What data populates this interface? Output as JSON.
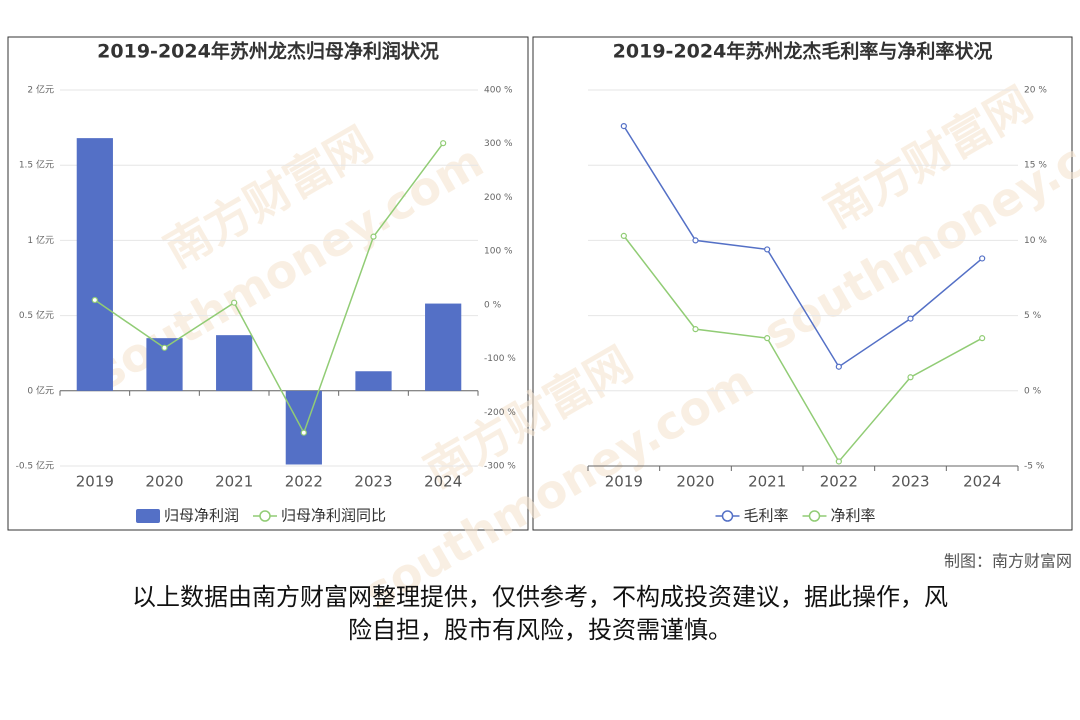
{
  "chart_data": [
    {
      "type": "bar",
      "title": "2019-2024年苏州龙杰归母净利润状况",
      "categories": [
        "2019",
        "2020",
        "2021",
        "2022",
        "2023",
        "2024"
      ],
      "series": [
        {
          "name": "归母净利润",
          "type": "bar",
          "color": "#5470c6",
          "values": [
            1.68,
            0.35,
            0.37,
            -0.49,
            0.13,
            0.58
          ]
        },
        {
          "name": "归母净利润同比",
          "type": "line",
          "axis": "y2",
          "color": "#91cc75",
          "values": [
            9,
            -80,
            4,
            -238,
            127,
            301
          ]
        }
      ],
      "ylim": [
        -0.5,
        2
      ],
      "yticks": [
        {
          "value": -0.5,
          "label": "-0.5 亿元"
        },
        {
          "value": 0,
          "label": "0 亿元"
        },
        {
          "value": 0.5,
          "label": "0.5 亿元"
        },
        {
          "value": 1,
          "label": "1 亿元"
        },
        {
          "value": 1.5,
          "label": "1.5 亿元"
        },
        {
          "value": 2,
          "label": "2 亿元"
        }
      ],
      "y2lim": [
        -300,
        400
      ],
      "y2ticks": [
        {
          "value": -300,
          "label": "-300 %"
        },
        {
          "value": -200,
          "label": "-200 %"
        },
        {
          "value": -100,
          "label": "-100 %"
        },
        {
          "value": 0,
          "label": "0 %"
        },
        {
          "value": 100,
          "label": "100 %"
        },
        {
          "value": 200,
          "label": "200 %"
        },
        {
          "value": 300,
          "label": "300 %"
        },
        {
          "value": 400,
          "label": "400 %"
        }
      ],
      "grid": true
    },
    {
      "type": "line",
      "title": "2019-2024年苏州龙杰毛利率与净利率状况",
      "categories": [
        "2019",
        "2020",
        "2021",
        "2022",
        "2023",
        "2024"
      ],
      "series": [
        {
          "name": "毛利率",
          "type": "line",
          "axis": "y2",
          "color": "#5470c6",
          "values": [
            17.6,
            10.0,
            9.4,
            1.6,
            4.8,
            8.8
          ]
        },
        {
          "name": "净利率",
          "type": "line",
          "axis": "y2",
          "color": "#91cc75",
          "values": [
            10.3,
            4.1,
            3.5,
            -4.7,
            0.9,
            3.5
          ]
        }
      ],
      "y2lim": [
        -5,
        20
      ],
      "y2ticks": [
        {
          "value": -5,
          "label": "-5 %"
        },
        {
          "value": 0,
          "label": "0 %"
        },
        {
          "value": 5,
          "label": "5 %"
        },
        {
          "value": 10,
          "label": "10 %"
        },
        {
          "value": 15,
          "label": "15 %"
        },
        {
          "value": 20,
          "label": "20 %"
        }
      ],
      "grid": true
    }
  ],
  "watermark": {
    "name": "南方财富网",
    "url": "southmoney.com"
  },
  "footer": {
    "credit": "制图：南方财富网",
    "disclaimer": [
      "以上数据由南方财富网整理提供，仅供参考，不构成投资建议，据此操作，风",
      "险自担，股市有风险，投资需谨慎。"
    ]
  }
}
